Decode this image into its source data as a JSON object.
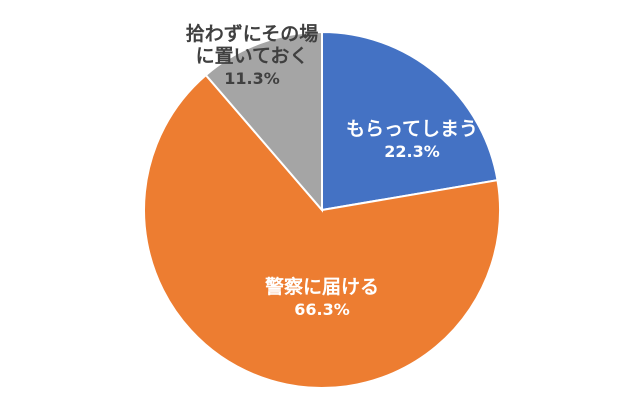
{
  "chart_data": {
    "type": "pie",
    "title": "",
    "slices": [
      {
        "label_lines": [
          "もらってしまう"
        ],
        "value": 22.3,
        "value_label": "22.3%",
        "color": "#4472c4",
        "text_color": "#ffffff"
      },
      {
        "label_lines": [
          "警察に届ける"
        ],
        "value": 66.3,
        "value_label": "66.3%",
        "color": "#ed7d31",
        "text_color": "#ffffff"
      },
      {
        "label_lines": [
          "拾わずにその場",
          "に置いておく"
        ],
        "value": 11.3,
        "value_label": "11.3%",
        "color": "#a5a5a5",
        "text_color": "#404040"
      }
    ],
    "start_angle": "12 o'clock",
    "direction": "clockwise",
    "legend": "none"
  }
}
